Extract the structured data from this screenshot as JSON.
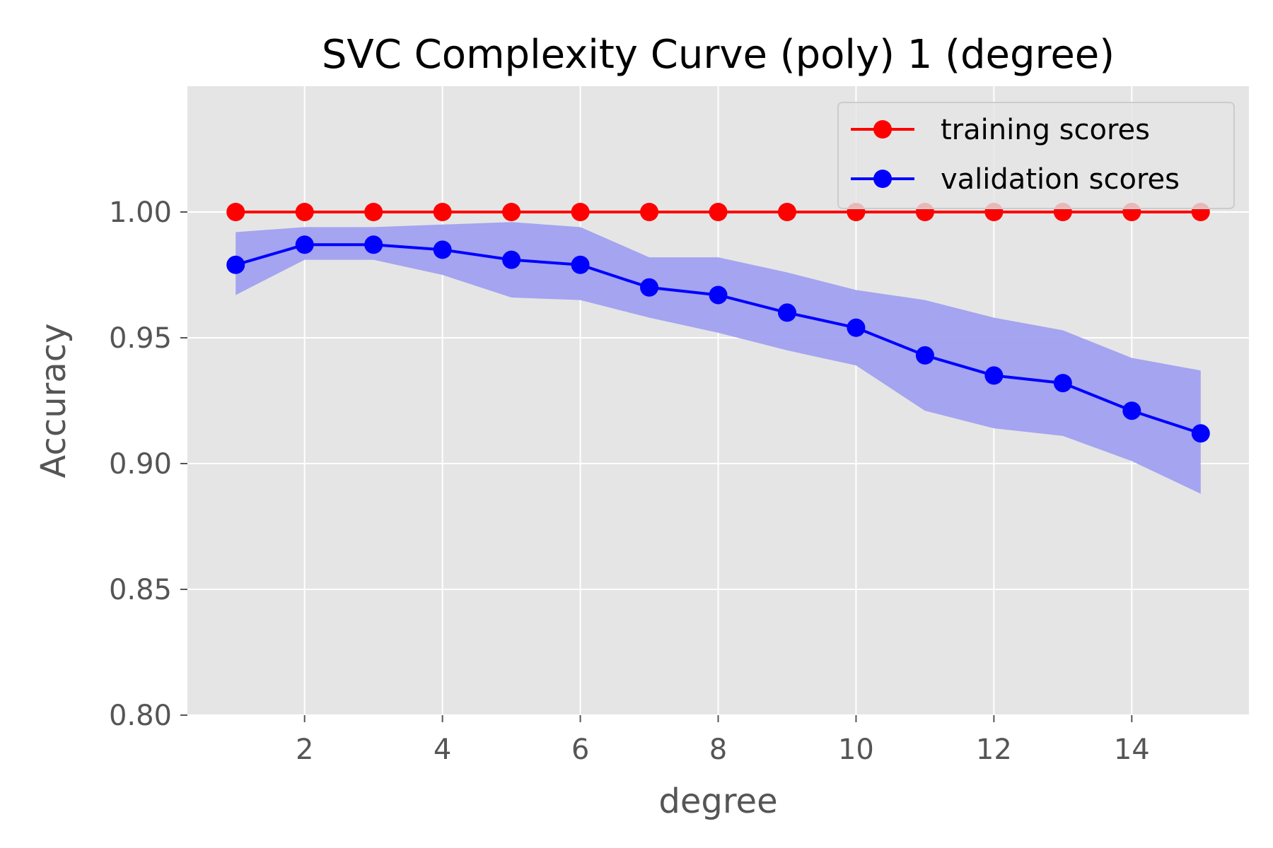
{
  "chart_data": {
    "type": "line",
    "title": "SVC Complexity Curve (poly) 1 (degree)",
    "xlabel": "degree",
    "ylabel": "Accuracy",
    "xlim": [
      0.3,
      15.7
    ],
    "ylim": [
      0.8,
      1.05
    ],
    "xticks": [
      2,
      4,
      6,
      8,
      10,
      12,
      14
    ],
    "yticks": [
      0.8,
      0.85,
      0.9,
      0.95,
      1.0
    ],
    "ytick_labels": [
      "0.80",
      "0.85",
      "0.90",
      "0.95",
      "1.00"
    ],
    "grid": true,
    "legend_position": "top-right",
    "x": [
      1,
      2,
      3,
      4,
      5,
      6,
      7,
      8,
      9,
      10,
      11,
      12,
      13,
      14,
      15
    ],
    "series": [
      {
        "name": "training scores",
        "color": "#ff0000",
        "values": [
          1.0,
          1.0,
          1.0,
          1.0,
          1.0,
          1.0,
          1.0,
          1.0,
          1.0,
          1.0,
          1.0,
          1.0,
          1.0,
          1.0,
          1.0
        ]
      },
      {
        "name": "validation scores",
        "color": "#0000ff",
        "band_color": "#a0a0f0",
        "values": [
          0.979,
          0.987,
          0.987,
          0.985,
          0.981,
          0.979,
          0.97,
          0.967,
          0.96,
          0.954,
          0.943,
          0.935,
          0.932,
          0.921,
          0.912
        ],
        "lower": [
          0.967,
          0.981,
          0.981,
          0.975,
          0.966,
          0.965,
          0.958,
          0.952,
          0.945,
          0.939,
          0.921,
          0.914,
          0.911,
          0.901,
          0.888
        ],
        "upper": [
          0.992,
          0.994,
          0.994,
          0.995,
          0.996,
          0.994,
          0.982,
          0.982,
          0.976,
          0.969,
          0.965,
          0.958,
          0.953,
          0.942,
          0.937
        ]
      }
    ]
  }
}
